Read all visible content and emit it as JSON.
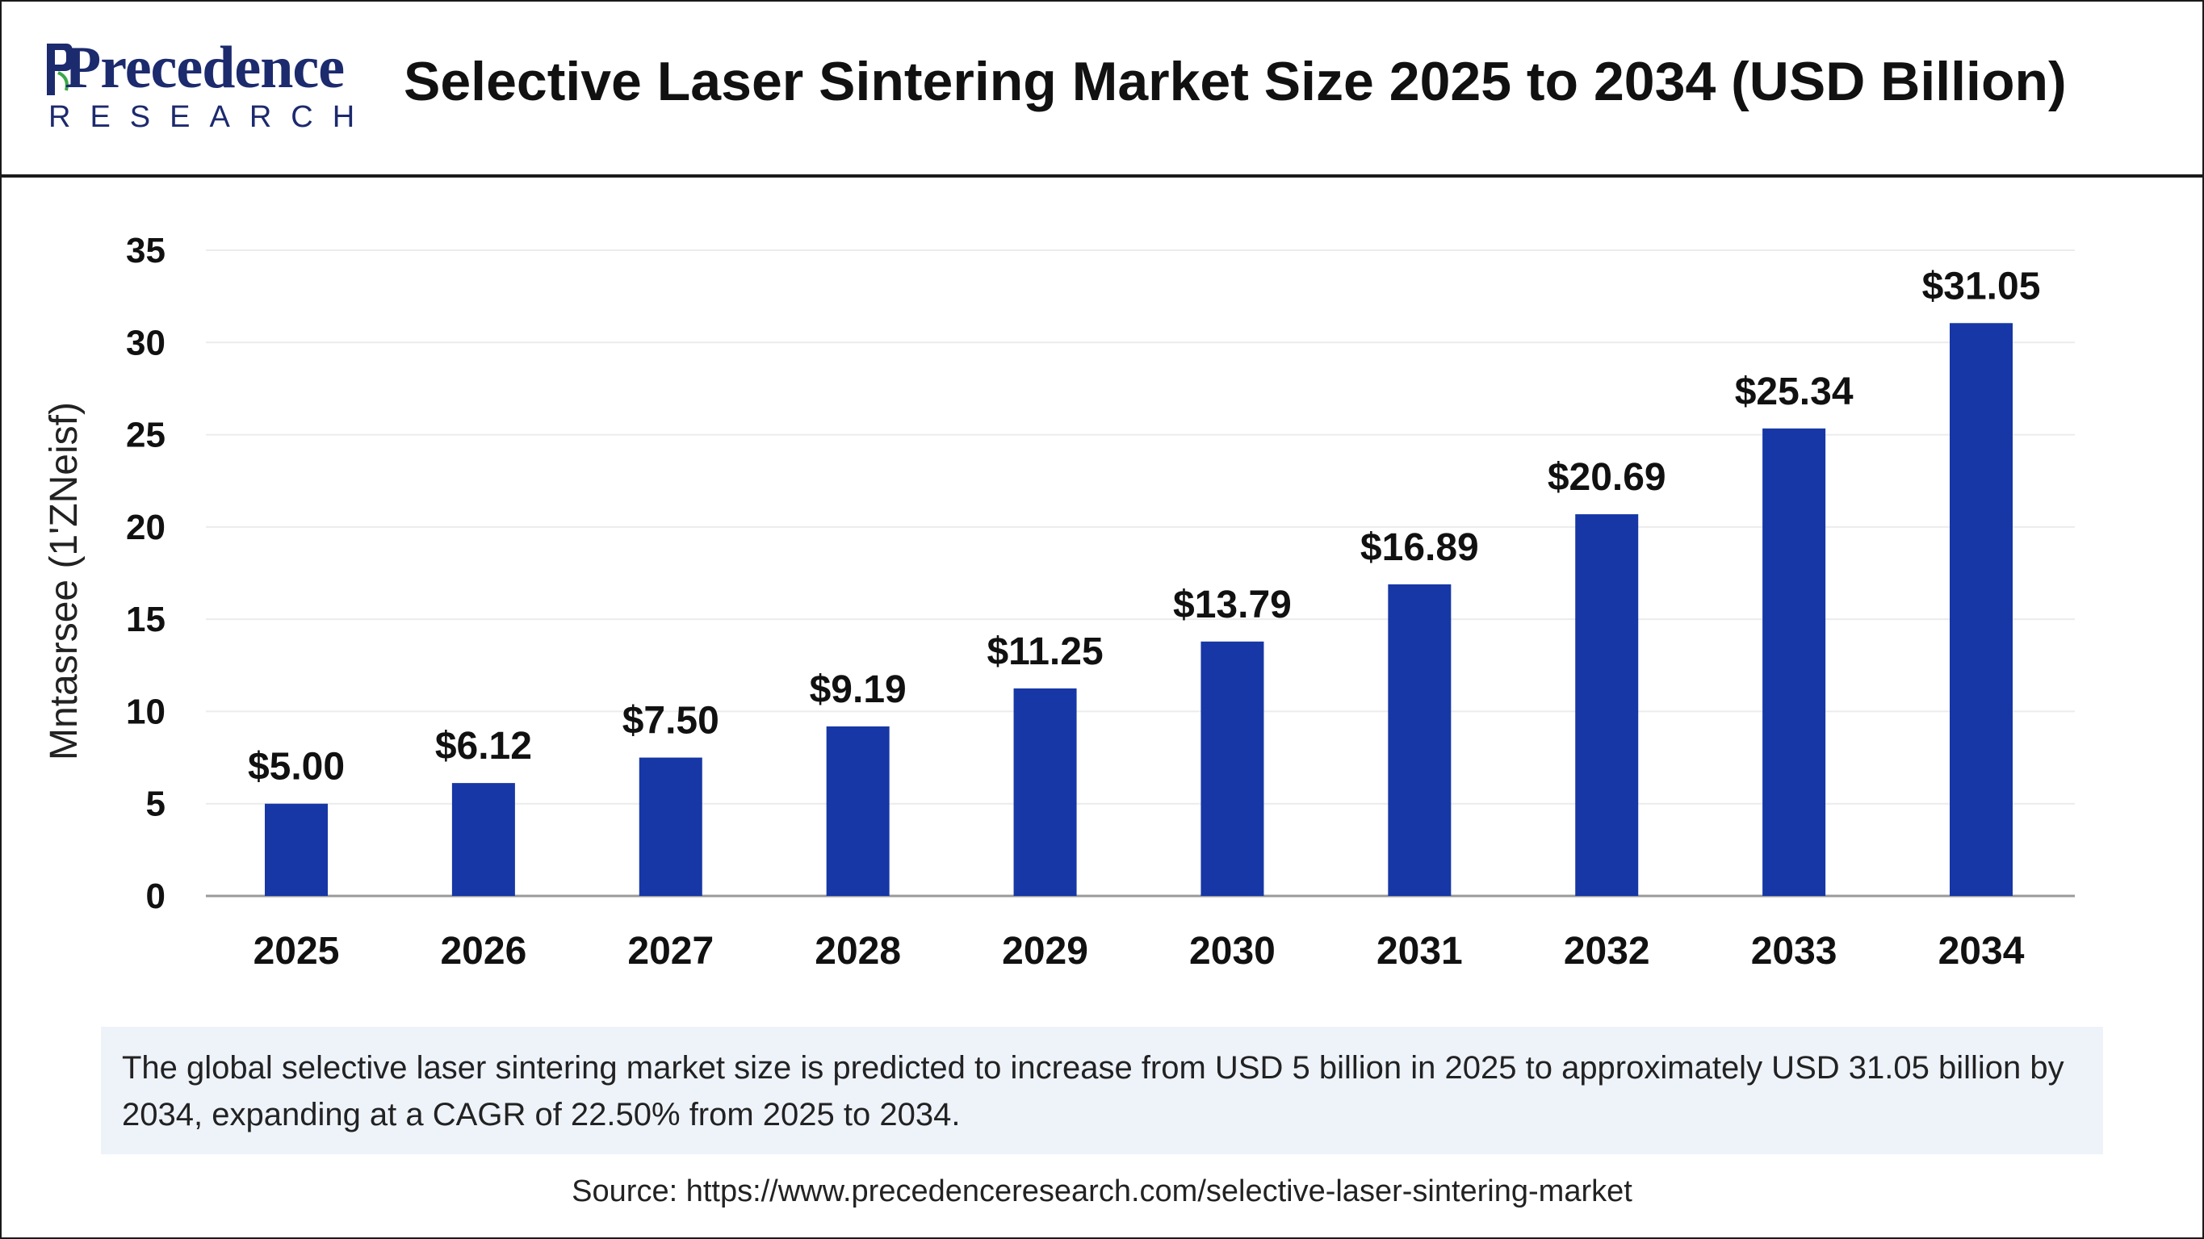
{
  "header": {
    "logo_word": "Precedence",
    "logo_sub": "RESEARCH",
    "title": "Selective Laser Sintering Market Size 2025 to 2034 (USD Billion)"
  },
  "chart_data": {
    "type": "bar",
    "categories": [
      "2025",
      "2026",
      "2027",
      "2028",
      "2029",
      "2030",
      "2031",
      "2032",
      "2033",
      "2034"
    ],
    "values": [
      5.0,
      6.12,
      7.5,
      9.19,
      11.25,
      13.79,
      16.89,
      20.69,
      25.34,
      31.05
    ],
    "data_labels": [
      "$5.00",
      "$6.12",
      "$7.50",
      "$9.19",
      "$11.25",
      "$13.79",
      "$16.89",
      "$20.69",
      "$25.34",
      "$31.05"
    ],
    "ylabel": "Mntasrsee (1'ZNeisf)",
    "ylim": [
      0,
      35
    ],
    "yticks": [
      0,
      5,
      10,
      15,
      20,
      25,
      30,
      35
    ],
    "grid": true,
    "bar_color": "#1637a5"
  },
  "note": "The global selective laser sintering market size is predicted to increase from USD 5 billion in 2025 to approximately USD 31.05 billion by 2034, expanding at a CAGR of 22.50% from 2025 to 2034.",
  "source": "Source: https://www.precedenceresearch.com/selective-laser-sintering-market"
}
